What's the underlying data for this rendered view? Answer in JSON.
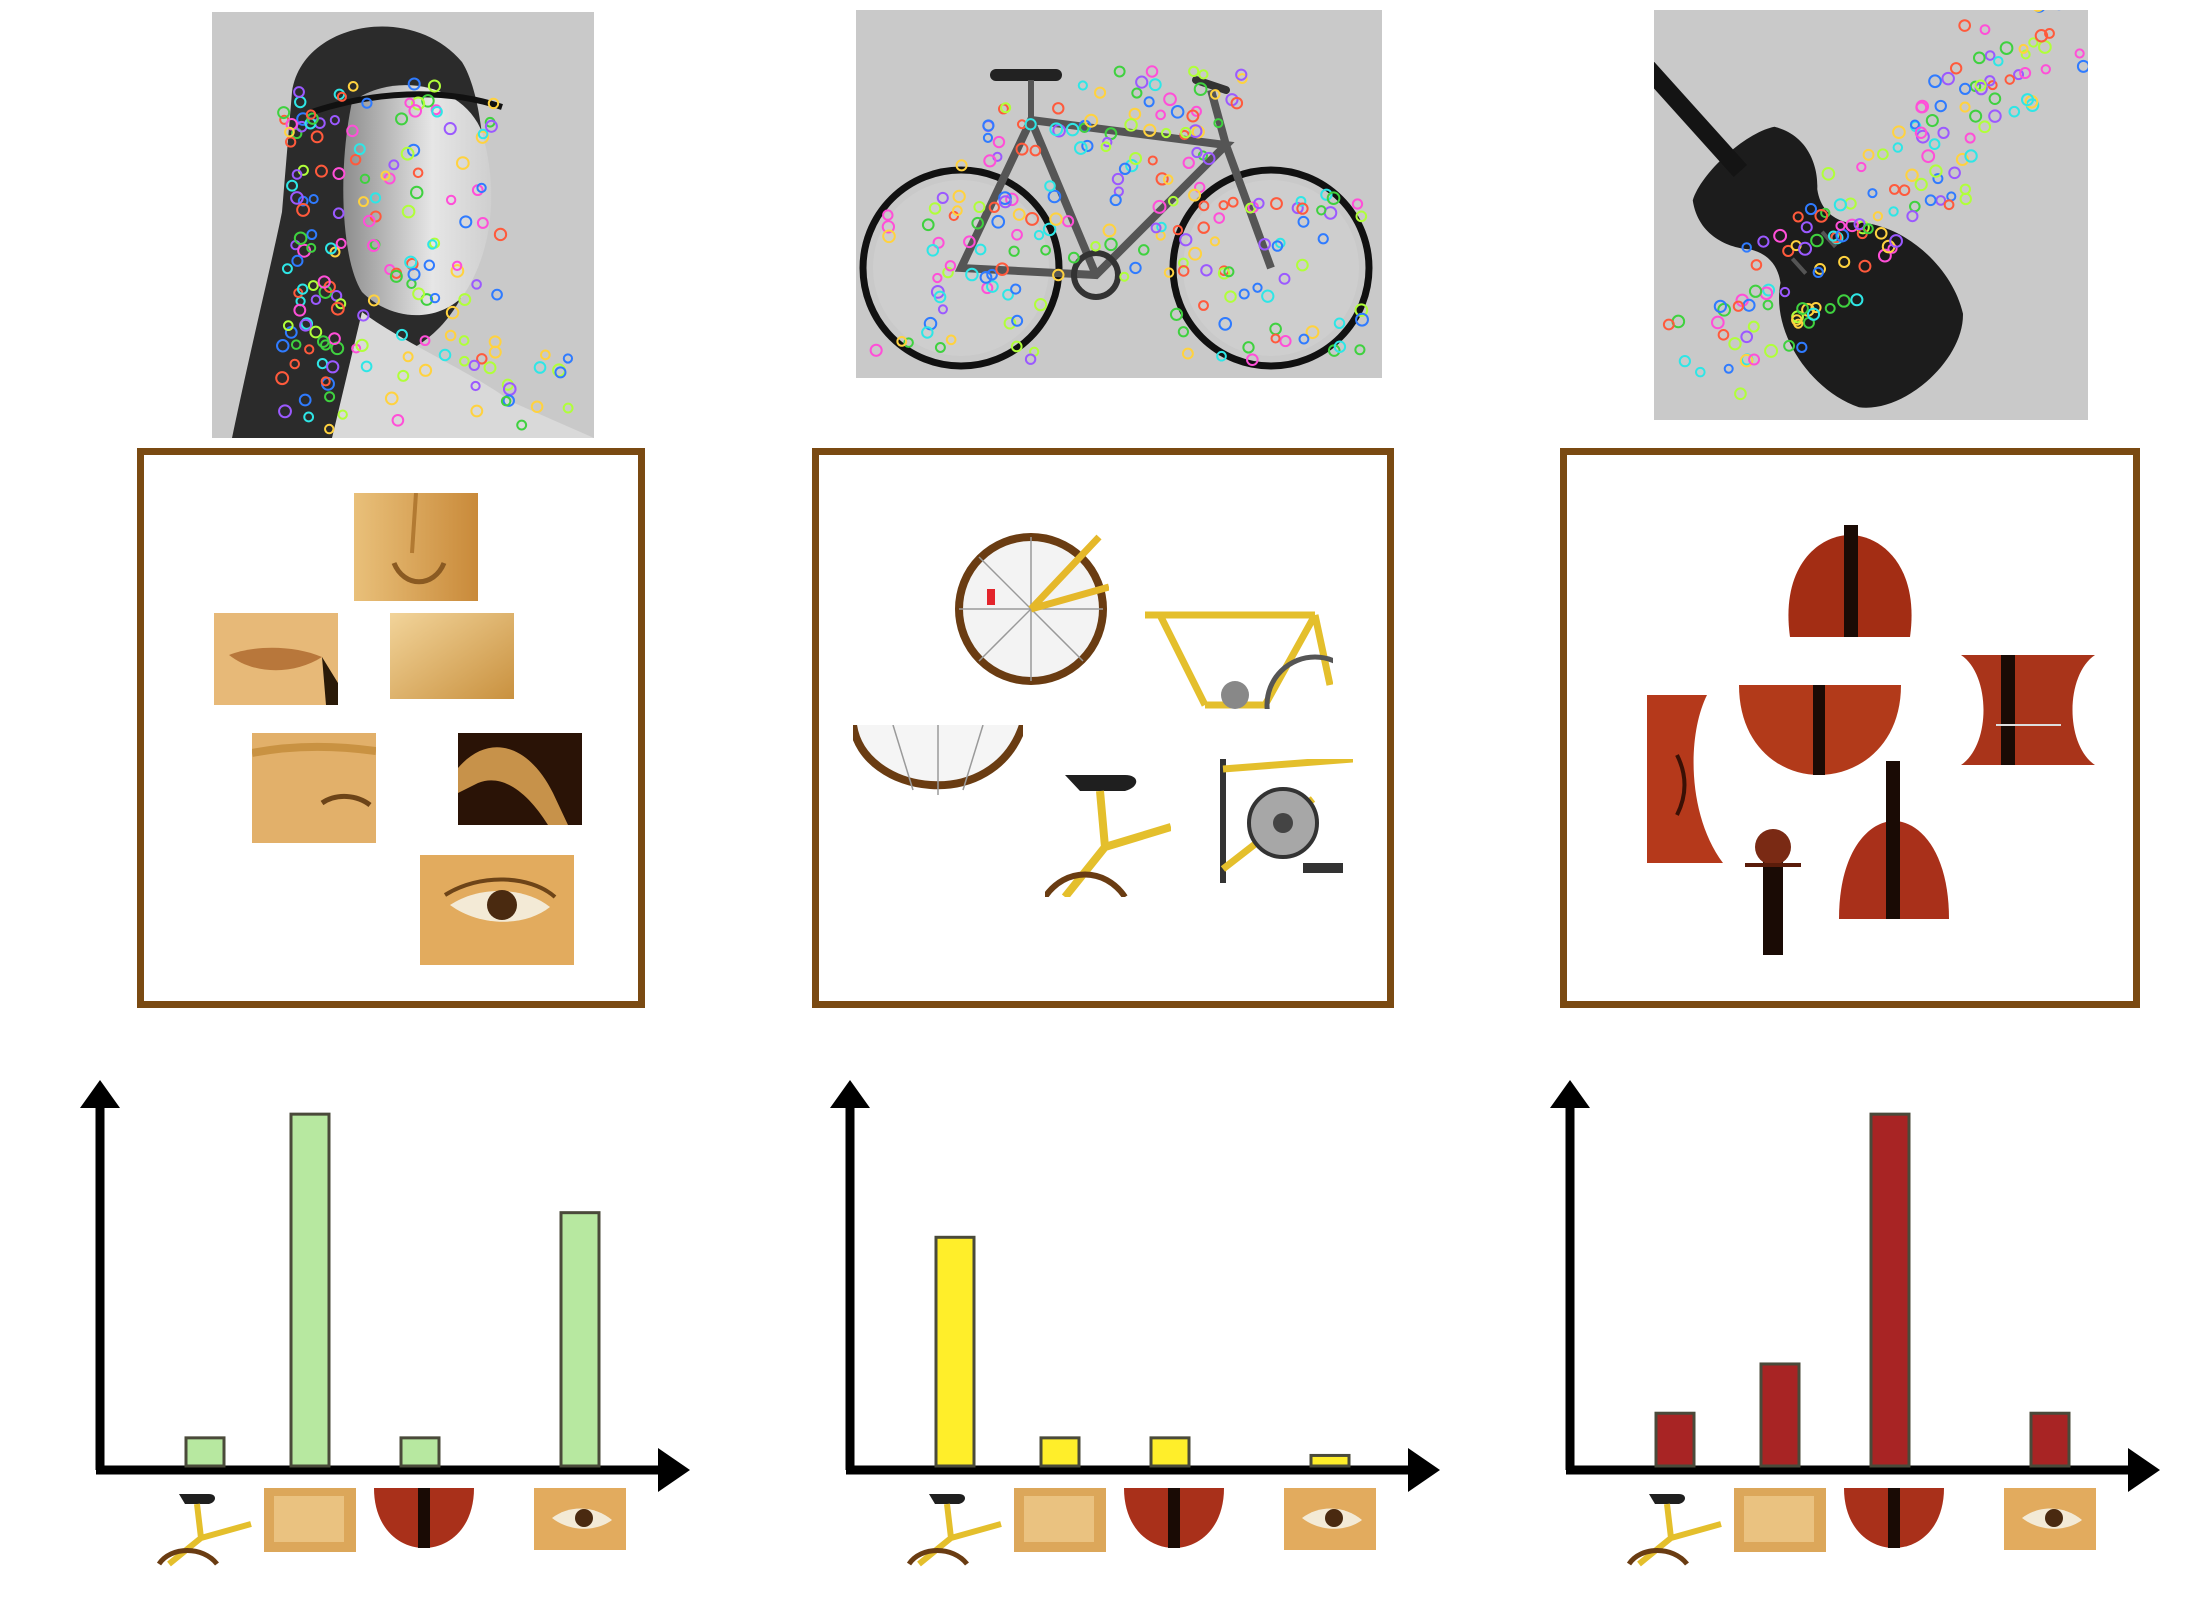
{
  "colors": {
    "frame_border": "#7a4a12",
    "photo_background": "#c9c9c9",
    "face_hist_fill": "#b7e8a0",
    "bike_hist_fill": "#ffee2a",
    "violin_hist_fill": "#a82424",
    "axis": "#000000"
  },
  "columns": [
    {
      "id": "face",
      "photo_icon": "portrait-photo-icon",
      "patches": [
        "nose-patch",
        "lips-patch",
        "skin-patch",
        "eye-with-headband-patch",
        "hair-patch",
        "eye-patch"
      ]
    },
    {
      "id": "bike",
      "photo_icon": "bicycle-photo-icon",
      "patches": [
        "rear-wheel-patch",
        "frame-patch",
        "wheel-arc-patch",
        "seat-patch",
        "chainring-patch"
      ]
    },
    {
      "id": "violin",
      "photo_icon": "violin-photo-icon",
      "patches": [
        "violin-top-patch",
        "violin-side-patch",
        "violin-bridge-patch",
        "violin-waist-patch",
        "violin-scroll-patch",
        "violin-neck-patch"
      ]
    }
  ],
  "chart_data": [
    {
      "type": "bar",
      "categories": [
        "bicycle-part",
        "skin-patch",
        "violin-part",
        "eye-patch"
      ],
      "values": [
        0.08,
        1.0,
        0.08,
        0.72
      ],
      "ylim": [
        0,
        1.08
      ],
      "fill": "#b7e8a0"
    },
    {
      "type": "bar",
      "categories": [
        "bicycle-part",
        "skin-patch",
        "violin-part",
        "eye-patch"
      ],
      "values": [
        0.65,
        0.08,
        0.08,
        0.03
      ],
      "ylim": [
        0,
        1.08
      ],
      "fill": "#ffee2a"
    },
    {
      "type": "bar",
      "categories": [
        "bicycle-part",
        "skin-patch",
        "violin-part",
        "eye-patch"
      ],
      "values": [
        0.15,
        0.29,
        1.0,
        0.15
      ],
      "ylim": [
        0,
        1.08
      ],
      "fill": "#a82424"
    }
  ]
}
